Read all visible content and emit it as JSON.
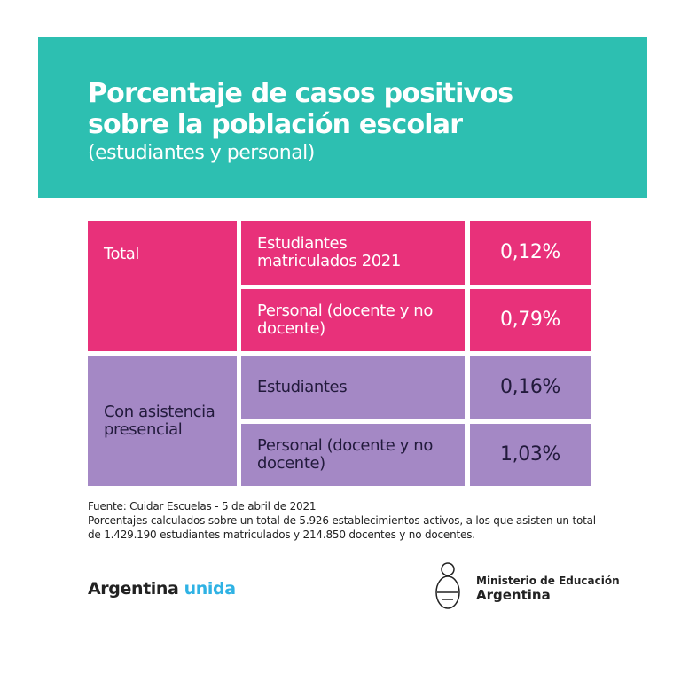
{
  "header": {
    "title_line1": "Porcentaje de casos positivos",
    "title_line2": "sobre la población escolar",
    "subtitle": "(estudiantes y personal)"
  },
  "table": {
    "groups": [
      {
        "label": "Total",
        "rows": [
          {
            "label": "Estudiantes matriculados 2021",
            "value": "0,12%"
          },
          {
            "label": "Personal (docente y no docente)",
            "value": "0,79%"
          }
        ]
      },
      {
        "label": "Con asistencia presencial",
        "rows": [
          {
            "label": "Estudiantes",
            "value": "0,16%"
          },
          {
            "label": "Personal (docente y no docente)",
            "value": "1,03%"
          }
        ]
      }
    ]
  },
  "colors": {
    "header": "#2dbfb1",
    "total": "#e8317a",
    "presencial": "#a488c5"
  },
  "footer": {
    "source": "Fuente: Cuidar Escuelas - 5 de abril de 2021",
    "note": "Porcentajes calculados sobre un total de 5.926 establecimientos activos, a los que asisten un total de 1.429.190 estudiantes matriculados y 214.850 docentes y no docentes.",
    "brand_left": "Argentina",
    "brand_right": "unida",
    "ministry_line1": "Ministerio de Educación",
    "ministry_line2": "Argentina"
  }
}
